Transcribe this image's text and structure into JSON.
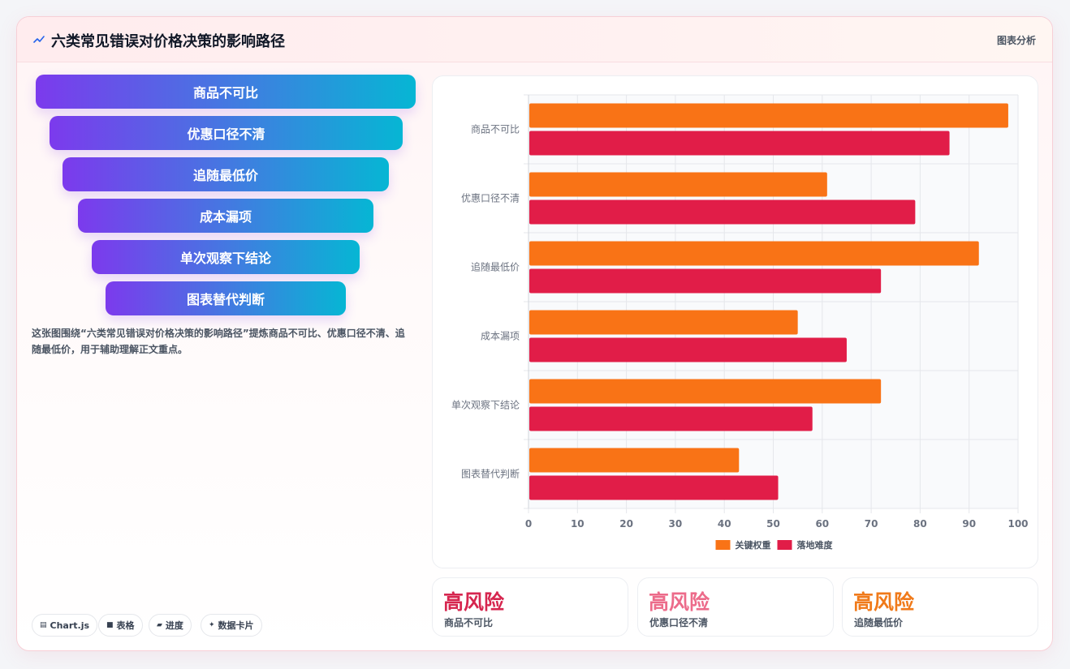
{
  "header": {
    "title": "六类常见错误对价格决策的影响路径",
    "tag": "图表分析",
    "title_icon": "sparkline-icon"
  },
  "funnel": {
    "items": [
      "商品不可比",
      "优惠口径不清",
      "追随最低价",
      "成本漏项",
      "单次观察下结论",
      "图表替代判断"
    ]
  },
  "description": "这张图围绕“六类常见错误对价格决策的影响路径”提炼商品不可比、优惠口径不清、追随最低价，用于辅助理解正文重点。",
  "chips": [
    {
      "icon": "chart-icon",
      "glyph": "▤",
      "label": "Chart.js"
    },
    {
      "icon": "table-icon",
      "glyph": "■",
      "label": "表格"
    },
    {
      "icon": "progress-icon",
      "glyph": "▰",
      "label": "进度"
    },
    {
      "icon": "data-card-icon",
      "glyph": "✦",
      "label": "数据卡片"
    }
  ],
  "stats": [
    {
      "value": "高风险",
      "label": "商品不可比",
      "color": "#d6264f"
    },
    {
      "value": "高风险",
      "label": "优惠口径不清",
      "color": "#ec6b8a"
    },
    {
      "value": "高风险",
      "label": "追随最低价",
      "color": "#f07a1a"
    }
  ],
  "chart_data": {
    "type": "bar",
    "orientation": "horizontal",
    "categories": [
      "商品不可比",
      "优惠口径不清",
      "追随最低价",
      "成本漏项",
      "单次观察下结论",
      "图表替代判断"
    ],
    "series": [
      {
        "name": "关键权重",
        "color": "#f97316",
        "values": [
          98,
          61,
          92,
          55,
          72,
          43
        ]
      },
      {
        "name": "落地难度",
        "color": "#e11d48",
        "values": [
          86,
          79,
          72,
          65,
          58,
          51
        ]
      }
    ],
    "xlim": [
      0,
      100
    ],
    "x_ticks": [
      0,
      10,
      20,
      30,
      40,
      50,
      60,
      70,
      80,
      90,
      100
    ],
    "grid": true,
    "legend": "bottom-center"
  }
}
